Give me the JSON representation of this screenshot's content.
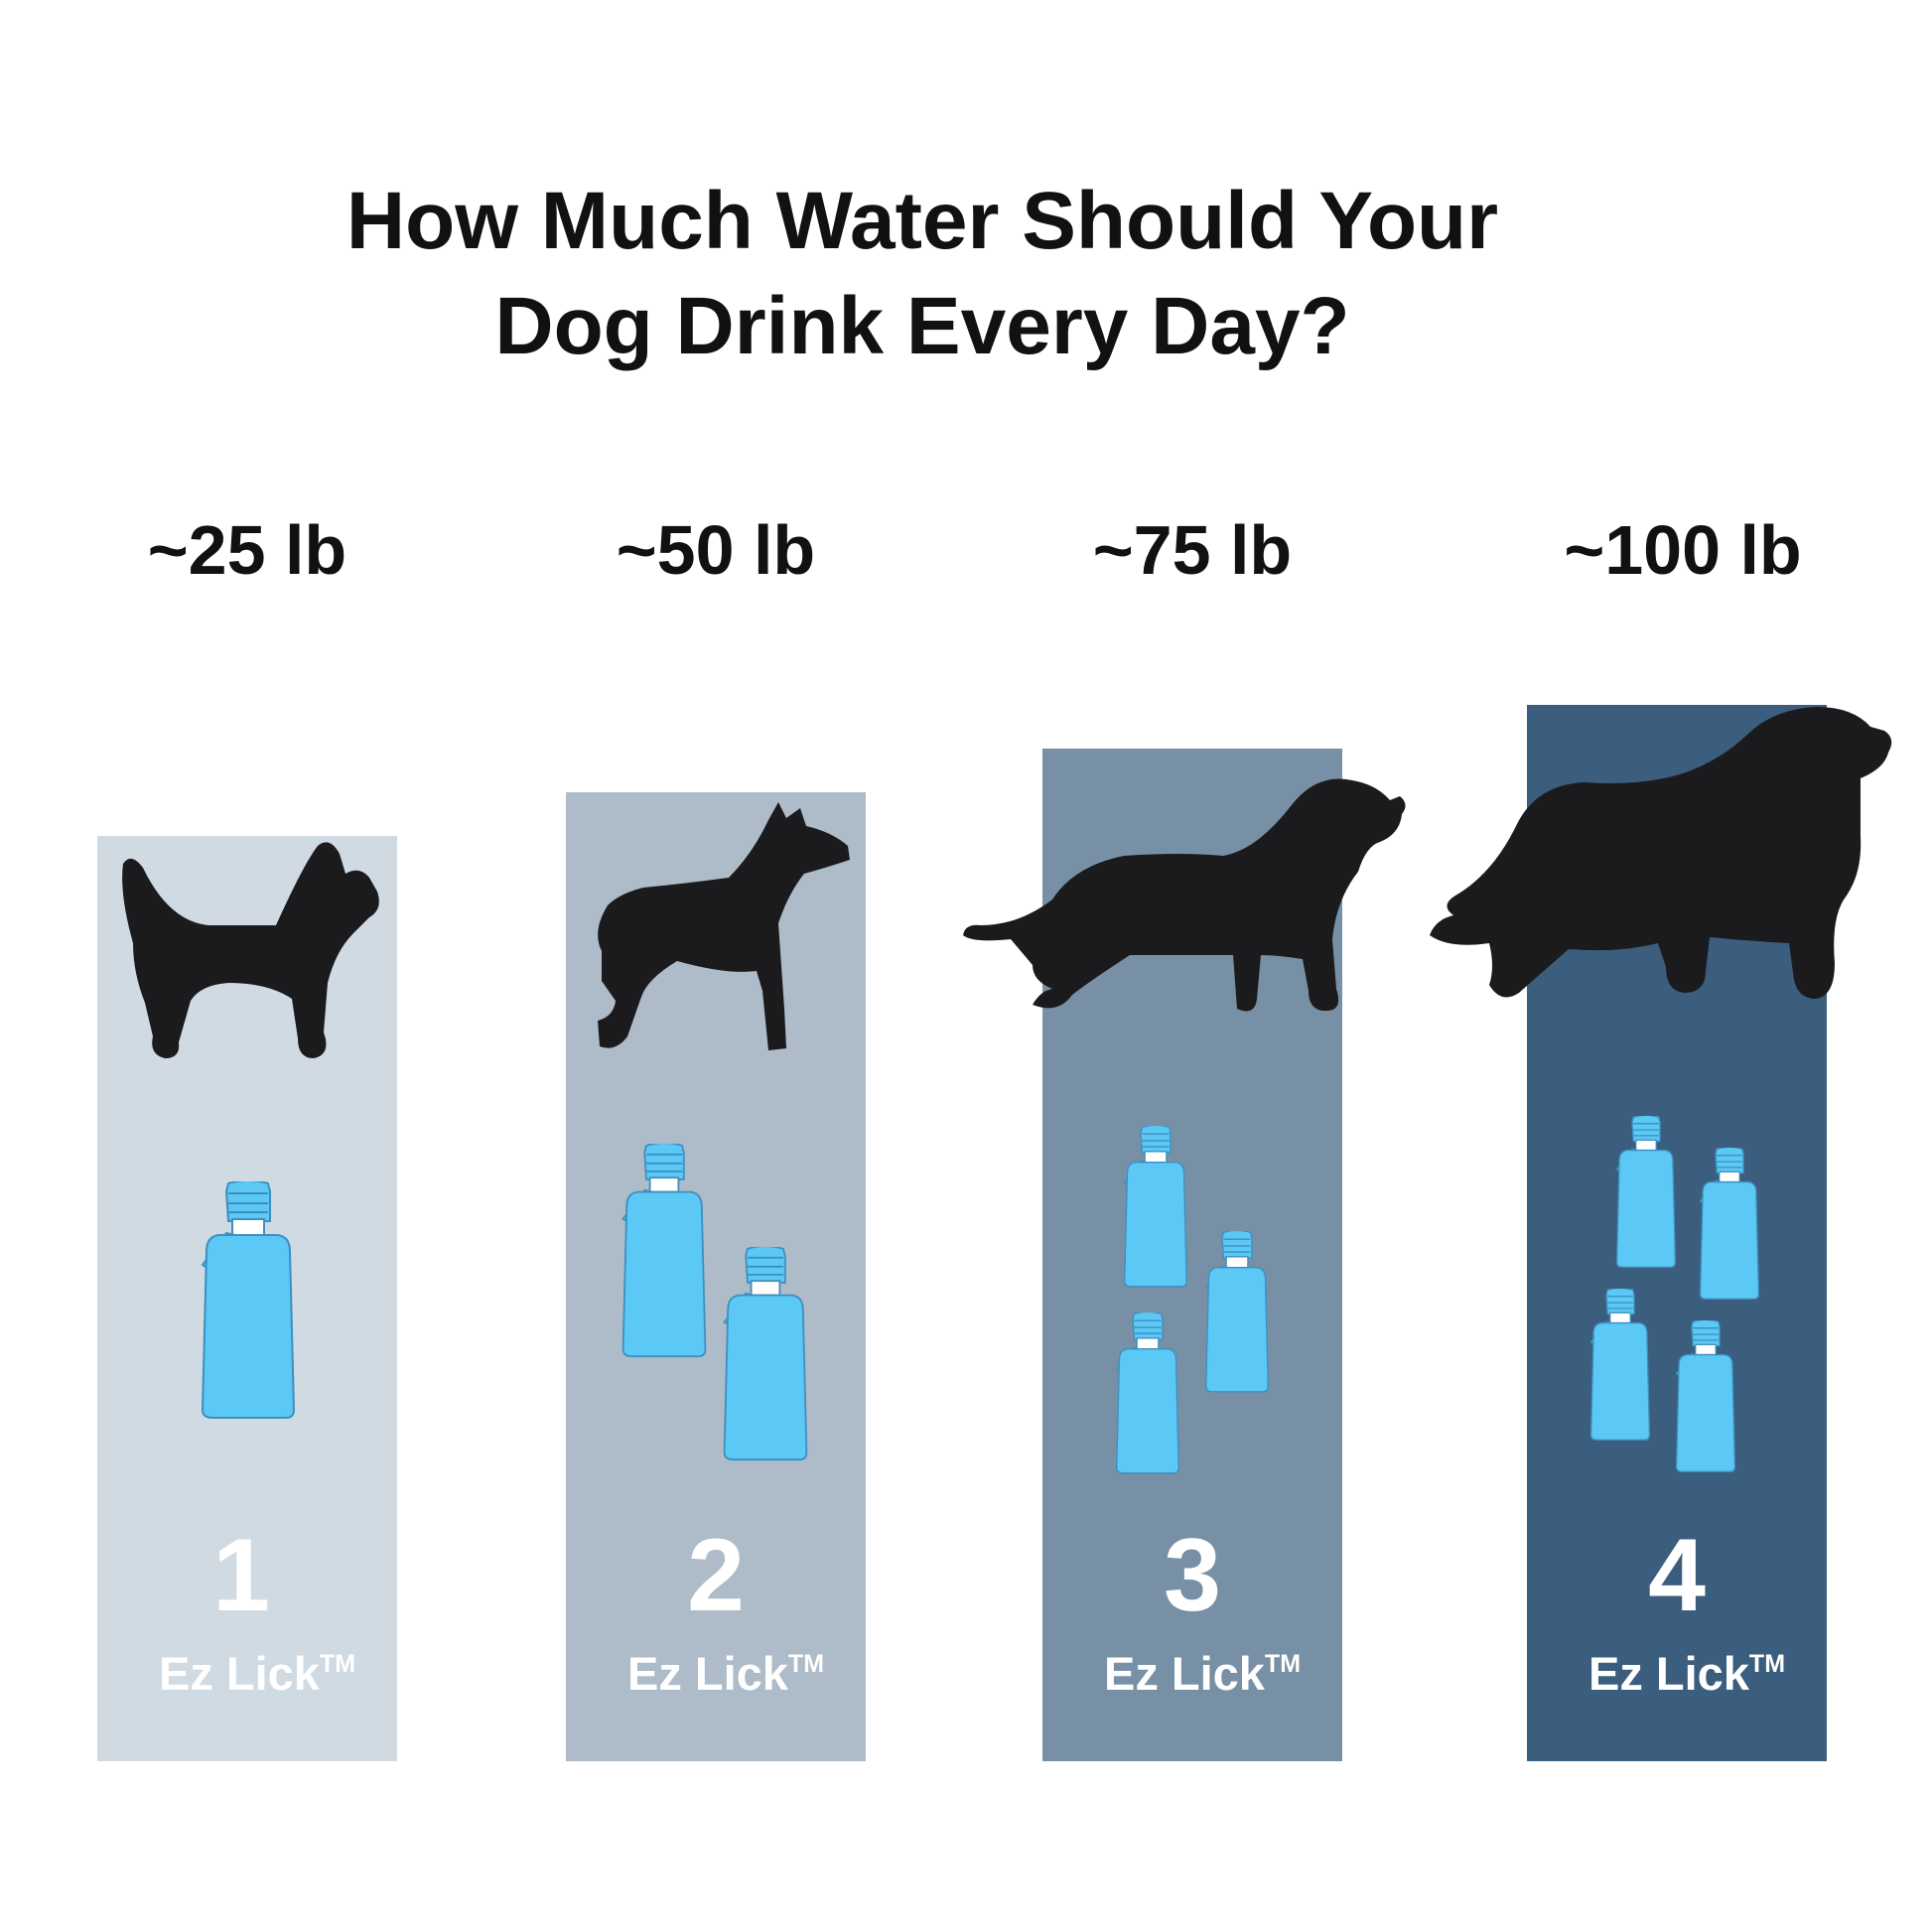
{
  "title_lines": [
    "How Much Water Should Your",
    "Dog Drink Every Day?"
  ],
  "colors": {
    "bottle": "#5bc8f5",
    "bottle_outline": "#3d8fbf",
    "dog": "#1b1b1d",
    "columns": [
      "#d0dae3",
      "#adbcc8",
      "#7890a5",
      "#3c5e7e"
    ]
  },
  "icons": {
    "dog": "dog-silhouette-icon",
    "bottle": "water-bottle-icon"
  },
  "chart_data": {
    "type": "bar",
    "categories": [
      "~25 lb",
      "~50 lb",
      "~75 lb",
      "~100 lb"
    ],
    "values": [
      1,
      2,
      3,
      4
    ],
    "value_labels": [
      "1",
      "2",
      "3",
      "4"
    ],
    "unit_label": "Ez Lick",
    "unit_mark": "TM",
    "title": "How Much Water Should Your Dog Drink Every Day?",
    "xlabel": "",
    "ylabel": "",
    "grid": false,
    "legend": "none"
  }
}
